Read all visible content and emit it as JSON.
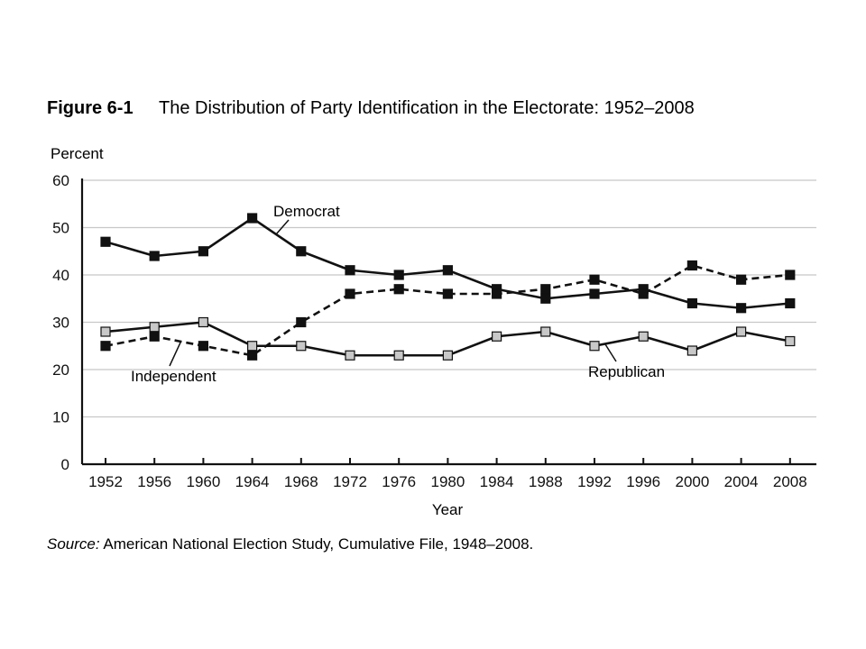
{
  "figure": {
    "number": "Figure 6-1",
    "title": "The Distribution of Party Identification in the Electorate: 1952–2008"
  },
  "source": {
    "label": "Source:",
    "text": " American National Election Study, Cumulative File, 1948–2008."
  },
  "chart_data": {
    "type": "line",
    "title": "The Distribution of Party Identification in the Electorate: 1952–2008",
    "xlabel": "Year",
    "ylabel": "Percent",
    "x": [
      1952,
      1956,
      1960,
      1964,
      1968,
      1972,
      1976,
      1980,
      1984,
      1988,
      1992,
      1996,
      2000,
      2004,
      2008
    ],
    "ylim": [
      0,
      60
    ],
    "yticks": [
      0,
      10,
      20,
      30,
      40,
      50,
      60
    ],
    "grid": "horizontal",
    "series": [
      {
        "name": "Democrat",
        "values": [
          47,
          44,
          45,
          52,
          45,
          41,
          40,
          41,
          37,
          35,
          36,
          37,
          34,
          33,
          34
        ],
        "line": "solid",
        "marker": "black-square",
        "color": "#111111",
        "marker_fill": "#111111"
      },
      {
        "name": "Independent",
        "values": [
          25,
          27,
          25,
          23,
          30,
          36,
          37,
          36,
          36,
          37,
          39,
          36,
          42,
          39,
          40
        ],
        "line": "dashed",
        "marker": "black-square",
        "color": "#111111",
        "marker_fill": "#111111"
      },
      {
        "name": "Republican",
        "values": [
          28,
          29,
          30,
          25,
          25,
          23,
          23,
          23,
          27,
          28,
          25,
          27,
          24,
          28,
          26
        ],
        "line": "solid",
        "marker": "gray-square",
        "color": "#111111",
        "marker_fill": "#c8c8c8"
      }
    ]
  }
}
